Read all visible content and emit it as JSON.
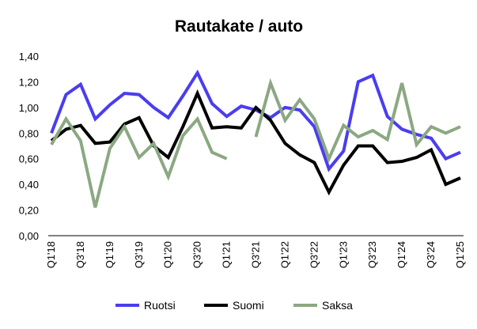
{
  "chart_data": {
    "type": "line",
    "title": "Rautakate / auto",
    "xlabel": "",
    "ylabel": "",
    "ylim": [
      0,
      1.4
    ],
    "y_ticks": [
      "0,00",
      "0,20",
      "0,40",
      "0,60",
      "0,80",
      "1,00",
      "1,20",
      "1,40"
    ],
    "x": [
      "Q1'18",
      "Q2'18",
      "Q3'18",
      "Q4'18",
      "Q1'19",
      "Q2'19",
      "Q3'19",
      "Q4'19",
      "Q1'20",
      "Q2'20",
      "Q3'20",
      "Q4'20",
      "Q1'21",
      "Q2'21",
      "Q3'21",
      "Q4'21",
      "Q1'22",
      "Q2'22",
      "Q3'22",
      "Q4'22",
      "Q1'23",
      "Q2'23",
      "Q3'23",
      "Q4'23",
      "Q1'24",
      "Q2'24",
      "Q3'24",
      "Q4'24",
      "Q1'25"
    ],
    "x_tick_labels": [
      "Q1'18",
      "Q3'18",
      "Q1'19",
      "Q3'19",
      "Q1'20",
      "Q3'20",
      "Q1'21",
      "Q3'21",
      "Q1'22",
      "Q3'22",
      "Q1'23",
      "Q3'23",
      "Q1'24",
      "Q3'24",
      "Q1'25"
    ],
    "legend_position": "bottom",
    "grid": false,
    "series": [
      {
        "name": "Ruotsi",
        "color": "#4a3df0",
        "values": [
          0.8,
          1.1,
          1.18,
          0.91,
          1.02,
          1.11,
          1.1,
          1.0,
          0.92,
          1.09,
          1.27,
          1.03,
          0.93,
          1.01,
          0.98,
          0.92,
          1.0,
          0.98,
          0.85,
          0.52,
          0.66,
          1.2,
          1.25,
          0.93,
          0.83,
          0.79,
          0.76,
          0.6,
          0.65
        ]
      },
      {
        "name": "Suomi",
        "color": "#000000",
        "values": [
          0.74,
          0.83,
          0.86,
          0.72,
          0.73,
          0.87,
          0.92,
          0.7,
          0.61,
          0.85,
          1.11,
          0.84,
          0.85,
          0.84,
          1.0,
          0.9,
          0.72,
          0.63,
          0.57,
          0.34,
          0.55,
          0.7,
          0.7,
          0.57,
          0.58,
          0.61,
          0.67,
          0.4,
          0.45
        ]
      },
      {
        "name": "Saksa",
        "color": "#8ba882",
        "values": [
          0.71,
          0.91,
          0.74,
          0.22,
          0.68,
          0.85,
          0.61,
          0.72,
          0.46,
          0.78,
          0.91,
          0.65,
          0.6,
          null,
          0.77,
          1.19,
          0.9,
          1.06,
          0.91,
          0.6,
          0.86,
          0.77,
          0.82,
          0.75,
          1.19,
          0.71,
          0.85,
          0.8,
          0.85
        ]
      }
    ]
  }
}
